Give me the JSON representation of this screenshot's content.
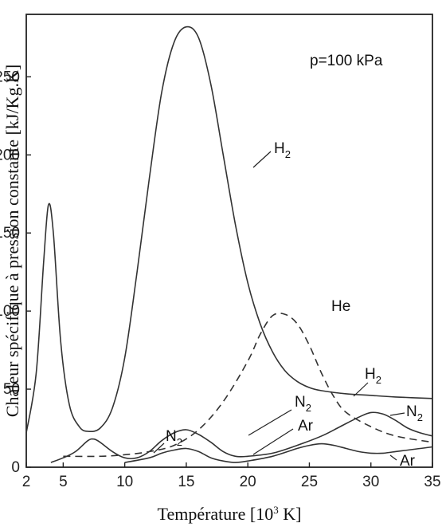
{
  "chart_data": {
    "type": "line",
    "title": "",
    "annotation": "p=100 kPa",
    "xlabel": "Température [10³ K]",
    "ylabel": "Chaleur spécifique à pression constante [kJ/Kg.K]",
    "xlim": [
      2,
      35
    ],
    "ylim": [
      0,
      290
    ],
    "x_ticks": [
      "2",
      "5",
      "10",
      "15",
      "20",
      "25",
      "30",
      "35"
    ],
    "y_ticks": [
      "0",
      "50",
      "100",
      "150",
      "200",
      "250"
    ],
    "grid": false,
    "series": [
      {
        "name": "H2",
        "style": "solid",
        "points": [
          [
            2,
            22
          ],
          [
            2.8,
            60
          ],
          [
            3.4,
            130
          ],
          [
            3.8,
            168
          ],
          [
            4.2,
            150
          ],
          [
            4.8,
            80
          ],
          [
            5.5,
            40
          ],
          [
            6.3,
            26
          ],
          [
            7,
            23
          ],
          [
            8,
            25
          ],
          [
            9,
            38
          ],
          [
            10,
            70
          ],
          [
            11,
            125
          ],
          [
            12,
            185
          ],
          [
            13,
            240
          ],
          [
            14,
            272
          ],
          [
            15,
            282
          ],
          [
            16,
            275
          ],
          [
            17,
            245
          ],
          [
            18,
            200
          ],
          [
            19,
            155
          ],
          [
            20,
            118
          ],
          [
            21,
            92
          ],
          [
            22,
            74
          ],
          [
            23,
            62
          ],
          [
            24,
            55
          ],
          [
            25,
            51
          ],
          [
            26,
            49
          ],
          [
            28,
            47
          ],
          [
            30,
            46
          ],
          [
            32,
            45
          ],
          [
            35,
            44
          ]
        ]
      },
      {
        "name": "He",
        "style": "dashed",
        "points": [
          [
            5,
            7
          ],
          [
            8,
            7
          ],
          [
            10,
            8
          ],
          [
            12,
            10
          ],
          [
            14,
            14
          ],
          [
            16,
            24
          ],
          [
            18,
            42
          ],
          [
            20,
            68
          ],
          [
            21,
            85
          ],
          [
            22,
            97
          ],
          [
            23,
            98
          ],
          [
            24,
            92
          ],
          [
            25,
            78
          ],
          [
            26,
            60
          ],
          [
            27,
            45
          ],
          [
            28,
            35
          ],
          [
            30,
            26
          ],
          [
            32,
            20
          ],
          [
            35,
            16
          ]
        ]
      },
      {
        "name": "N2",
        "style": "solid",
        "points": [
          [
            4,
            3
          ],
          [
            5,
            6
          ],
          [
            6,
            10
          ],
          [
            7,
            17
          ],
          [
            7.5,
            18
          ],
          [
            8,
            16
          ],
          [
            9,
            10
          ],
          [
            10,
            6
          ],
          [
            11,
            6
          ],
          [
            12,
            10
          ],
          [
            13,
            17
          ],
          [
            14,
            22
          ],
          [
            15,
            24
          ],
          [
            16,
            21
          ],
          [
            17,
            16
          ],
          [
            18,
            10
          ],
          [
            19,
            7
          ],
          [
            20,
            7
          ],
          [
            22,
            9
          ],
          [
            24,
            14
          ],
          [
            26,
            20
          ],
          [
            27.5,
            26
          ],
          [
            29,
            32
          ],
          [
            30,
            35
          ],
          [
            31,
            34
          ],
          [
            32,
            30
          ],
          [
            33,
            25
          ],
          [
            34,
            22
          ],
          [
            35,
            20
          ]
        ]
      },
      {
        "name": "Ar",
        "style": "solid",
        "points": [
          [
            10,
            3
          ],
          [
            12,
            6
          ],
          [
            13,
            9
          ],
          [
            14,
            11
          ],
          [
            15,
            12
          ],
          [
            16,
            10
          ],
          [
            17,
            6
          ],
          [
            18,
            4
          ],
          [
            19,
            3
          ],
          [
            20,
            4
          ],
          [
            22,
            7
          ],
          [
            24,
            12
          ],
          [
            25,
            14
          ],
          [
            26,
            15
          ],
          [
            27,
            14
          ],
          [
            28,
            12
          ],
          [
            29,
            10
          ],
          [
            30,
            9
          ],
          [
            31,
            9
          ],
          [
            32,
            10
          ],
          [
            33,
            11
          ],
          [
            34,
            12
          ],
          [
            35,
            13
          ]
        ]
      }
    ],
    "labels": {
      "h2_peak": "H",
      "h2_tail": "H",
      "he": "He",
      "n2_left": "N",
      "n2_middle": "N",
      "n2_right": "N",
      "ar_middle": "Ar",
      "ar_right": "Ar",
      "subscript": "2"
    }
  }
}
